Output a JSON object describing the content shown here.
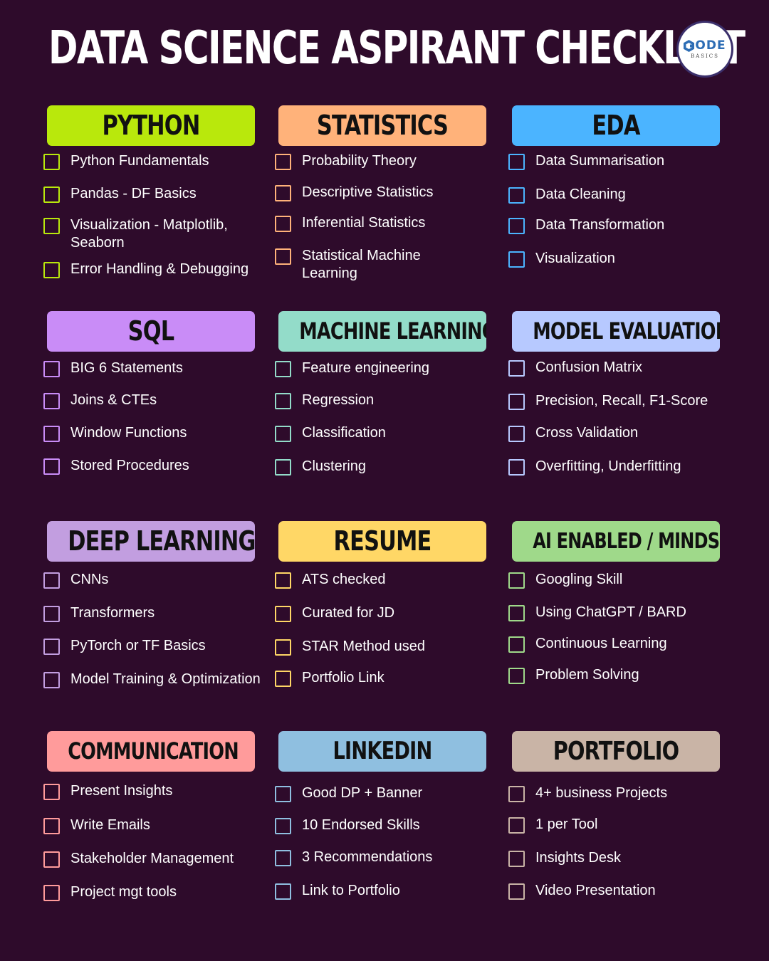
{
  "page": {
    "title": "DATA SCIENCE ASPIRANT CHECKLIST",
    "background": "#2e0b2b"
  },
  "logo": {
    "text": "ODE",
    "subtext": "BASICS",
    "icon": "hexagon-c-icon",
    "color": "#2d6db5"
  },
  "sections": [
    {
      "title": "PYTHON",
      "color": "#b9e80c",
      "items": [
        "Python Fundamentals",
        "Pandas - DF Basics",
        "Visualization - Matplotlib, Seaborn",
        "Error Handling & Debugging"
      ]
    },
    {
      "title": "STATISTICS",
      "color": "#ffb27a",
      "items": [
        "Probability Theory",
        "Descriptive Statistics",
        "Inferential Statistics",
        "Statistical Machine Learning"
      ]
    },
    {
      "title": "EDA",
      "color": "#4bb4ff",
      "items": [
        "Data Summarisation",
        "Data Cleaning",
        "Data Transformation",
        "Visualization"
      ]
    },
    {
      "title": "SQL",
      "color": "#c98cf7",
      "items": [
        "BIG 6 Statements",
        "Joins & CTEs",
        "Window Functions",
        "Stored Procedures"
      ]
    },
    {
      "title": "MACHINE LEARNING",
      "color": "#93dcc9",
      "items": [
        "Feature engineering",
        "Regression",
        "Classification",
        "Clustering"
      ]
    },
    {
      "title": "MODEL EVALUATION",
      "color": "#b7c9ff",
      "items": [
        "Confusion Matrix",
        "Precision, Recall, F1-Score",
        "Cross Validation",
        "Overfitting, Underfitting"
      ]
    },
    {
      "title": "DEEP LEARNING",
      "color": "#c29ee0",
      "items": [
        "CNNs",
        "Transformers",
        "PyTorch or TF Basics",
        "Model Training & Optimization"
      ]
    },
    {
      "title": "RESUME",
      "color": "#ffd766",
      "items": [
        "ATS checked",
        "Curated for JD",
        "STAR Method used",
        "Portfolio Link"
      ]
    },
    {
      "title": "AI ENABLED / MINDSET",
      "color": "#9fd98a",
      "items": [
        "Googling Skill",
        "Using ChatGPT / BARD",
        "Continuous Learning",
        "Problem Solving"
      ]
    },
    {
      "title": "COMMUNICATION",
      "color": "#ff9b9b",
      "items": [
        "Present Insights",
        "Write Emails",
        "Stakeholder Management",
        "Project mgt tools"
      ]
    },
    {
      "title": "LINKEDIN",
      "color": "#8fbfe0",
      "items": [
        "Good DP + Banner",
        "10 Endorsed Skills",
        "3 Recommendations",
        "Link to Portfolio"
      ]
    },
    {
      "title": "PORTFOLIO",
      "color": "#c9b4a6",
      "items": [
        "4+ business Projects",
        "1 per Tool",
        "Insights Desk",
        "Video Presentation"
      ]
    }
  ]
}
